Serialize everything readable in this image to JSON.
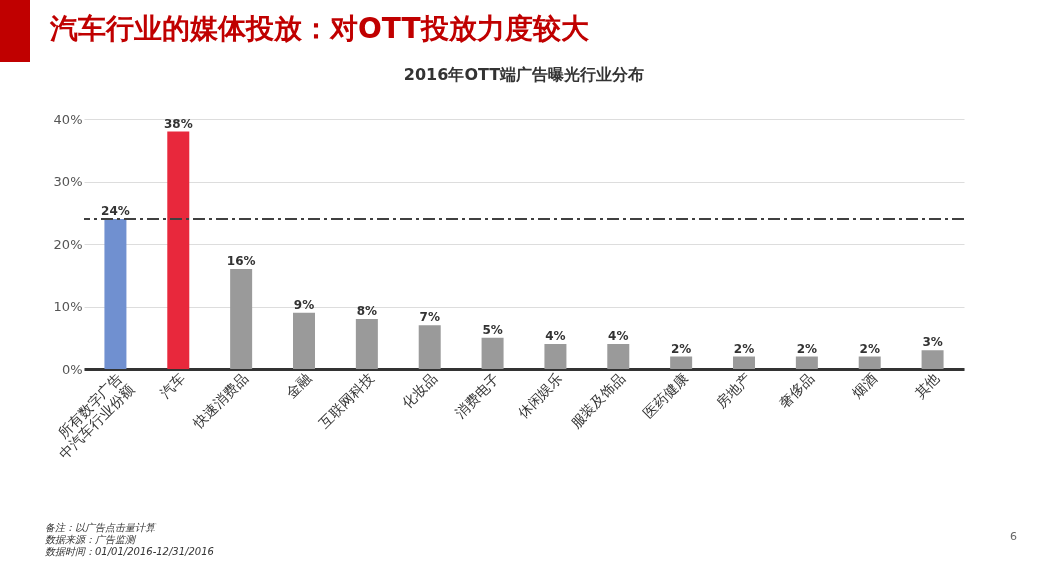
{
  "chart_data": {
    "type": "bar",
    "title": "汽车行业的媒体投放：对OTT投放力度较大",
    "subtitle": "2016年OTT端广告曝光行业分布",
    "categories": [
      "所有数字广告中汽车行业份额",
      "汽车",
      "快速消费品",
      "金融",
      "互联网科技",
      "化妆品",
      "消费电子",
      "休闲娱乐",
      "服装及饰品",
      "医药健康",
      "房地产",
      "奢侈品",
      "烟酒",
      "其他"
    ],
    "values": [
      24,
      38,
      16,
      9,
      8,
      7,
      5,
      4,
      4,
      2,
      2,
      2,
      2,
      3
    ],
    "value_labels": [
      "24%",
      "38%",
      "16%",
      "9%",
      "8%",
      "7%",
      "5%",
      "4%",
      "4%",
      "2%",
      "2%",
      "2%",
      "2%",
      "3%"
    ],
    "colors": [
      "#7090d0",
      "#e8283c",
      "#9a9a9a",
      "#9a9a9a",
      "#9a9a9a",
      "#9a9a9a",
      "#9a9a9a",
      "#9a9a9a",
      "#9a9a9a",
      "#9a9a9a",
      "#9a9a9a",
      "#9a9a9a",
      "#9a9a9a",
      "#9a9a9a"
    ],
    "ylim": [
      0,
      40
    ],
    "yticks": [
      {
        "value": 0,
        "label": "0%"
      },
      {
        "value": 10,
        "label": "10%"
      },
      {
        "value": 20,
        "label": "20%"
      },
      {
        "value": 30,
        "label": "30%"
      },
      {
        "value": 40,
        "label": "40%"
      }
    ],
    "grid": "y",
    "ref_lines": [
      {
        "axis": "y",
        "value": 24,
        "color": "#404040",
        "line_style": "dashdot"
      }
    ],
    "annotations": [
      "备注：以广告点击量计算",
      "数据来源：广告监测",
      "数据时间：01/01/2016-12/31/2016",
      "6"
    ]
  }
}
